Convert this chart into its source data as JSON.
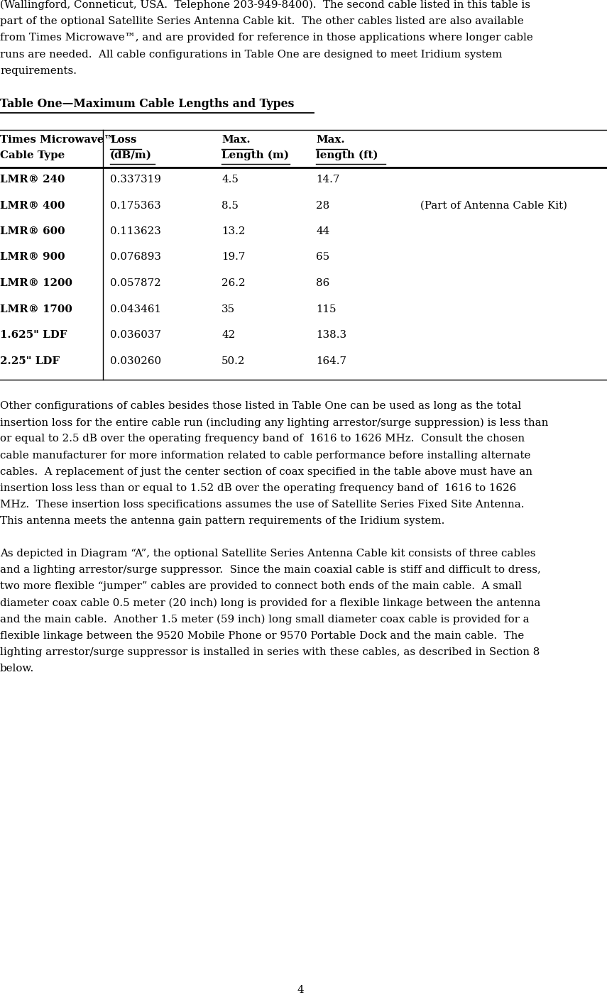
{
  "page_number": "4",
  "background_color": "#ffffff",
  "text_color": "#000000",
  "para1_lines": [
    "(Wallingford, Conneticut, USA.  Telephone 203-949-8400).  The second cable listed in this table is",
    "part of the optional Satellite Series Antenna Cable kit.  The other cables listed are also available",
    "from Times Microwave™, and are provided for reference in those applications where longer cable",
    "runs are needed.  All cable configurations in Table One are designed to meet Iridium system",
    "requirements."
  ],
  "table_title": "Table One—Maximum Cable Lengths and Types",
  "table_rows": [
    [
      "LMR® 240",
      "0.337319",
      "4.5",
      "14.7",
      ""
    ],
    [
      "LMR® 400",
      "0.175363",
      "8.5",
      "28",
      "(Part of Antenna Cable Kit)"
    ],
    [
      "LMR® 600",
      "0.113623",
      "13.2",
      "44",
      ""
    ],
    [
      "LMR® 900",
      "0.076893",
      "19.7",
      "65",
      ""
    ],
    [
      "LMR® 1200",
      "0.057872",
      "26.2",
      "86",
      ""
    ],
    [
      "LMR® 1700",
      "0.043461",
      "35",
      "115",
      ""
    ],
    [
      "1.625\" LDF",
      "0.036037",
      "42",
      "138.3",
      ""
    ],
    [
      "2.25\" LDF",
      "0.030260",
      "50.2",
      "164.7",
      ""
    ]
  ],
  "para2_lines": [
    "Other configurations of cables besides those listed in Table One can be used as long as the total",
    "insertion loss for the entire cable run (including any lighting arrestor/surge suppression) is less than",
    "or equal to 2.5 dB over the operating frequency band of  1616 to 1626 MHz.  Consult the chosen",
    "cable manufacturer for more information related to cable performance before installing alternate",
    "cables.  A replacement of just the center section of coax specified in the table above must have an",
    "insertion loss less than or equal to 1.52 dB over the operating frequency band of  1616 to 1626",
    "MHz.  These insertion loss specifications assumes the use of Satellite Series Fixed Site Antenna.",
    "This antenna meets the antenna gain pattern requirements of the Iridium system."
  ],
  "para3_lines": [
    "As depicted in Diagram “A”, the optional Satellite Series Antenna Cable kit consists of three cables",
    "and a lighting arrestor/surge suppressor.  Since the main coaxial cable is stiff and difficult to dress,",
    "two more flexible “jumper” cables are provided to connect both ends of the main cable.  A small",
    "diameter coax cable 0.5 meter (20 inch) long is provided for a flexible linkage between the antenna",
    "and the main cable.  Another 1.5 meter (59 inch) long small diameter coax cable is provided for a",
    "flexible linkage between the 9520 Mobile Phone or 9570 Portable Dock and the main cable.  The",
    "lighting arrestor/surge suppressor is installed in series with these cables, as described in Section 8",
    "below."
  ]
}
